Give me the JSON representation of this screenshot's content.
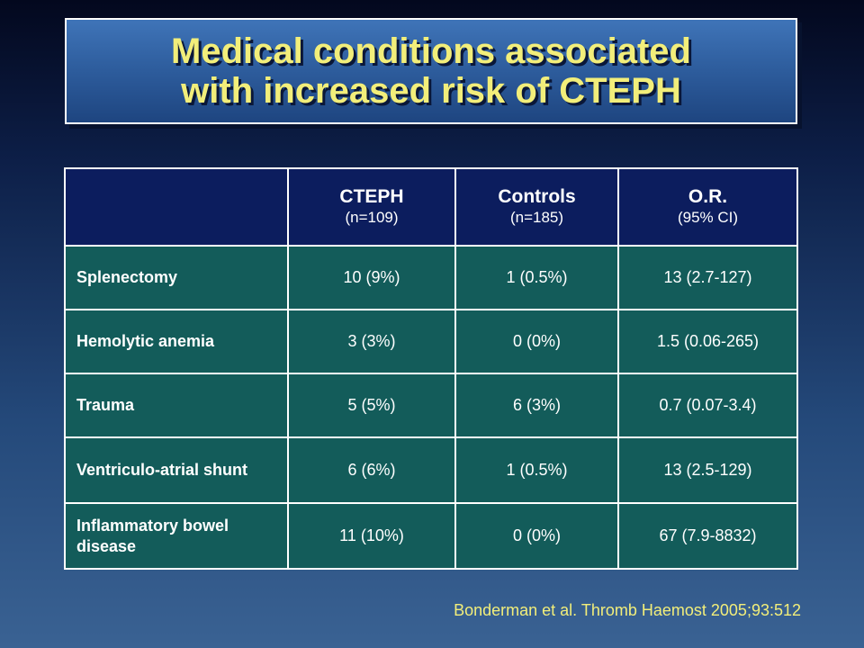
{
  "title": {
    "line1": "Medical conditions associated",
    "line2": "with increased risk of CTEPH"
  },
  "table": {
    "columns": [
      {
        "label": "",
        "sub": ""
      },
      {
        "label": "CTEPH",
        "sub": "(n=109)"
      },
      {
        "label": "Controls",
        "sub": "(n=185)"
      },
      {
        "label": "O.R.",
        "sub": "(95% CI)"
      }
    ],
    "rows": [
      {
        "label": "Splenectomy",
        "cteph": "10 (9%)",
        "controls": "1 (0.5%)",
        "or": "13 (2.7-127)"
      },
      {
        "label": "Hemolytic anemia",
        "cteph": "3 (3%)",
        "controls": "0 (0%)",
        "or": "1.5 (0.06-265)"
      },
      {
        "label": "Trauma",
        "cteph": "5 (5%)",
        "controls": "6 (3%)",
        "or": "0.7 (0.07-3.4)"
      },
      {
        "label": "Ventriculo-atrial shunt",
        "cteph": "6 (6%)",
        "controls": "1 (0.5%)",
        "or": "13 (2.5-129)"
      },
      {
        "label": "Inflammatory bowel disease",
        "cteph": "11 (10%)",
        "controls": "0 (0%)",
        "or": "67 (7.9-8832)"
      }
    ]
  },
  "citation": "Bonderman et al. Thromb Haemost 2005;93:512",
  "colors": {
    "title_text": "#f2ee7a",
    "header_bg": "#0c1d5e",
    "body_bg": "#135c5a",
    "citation_text": "#f2ee7a"
  }
}
